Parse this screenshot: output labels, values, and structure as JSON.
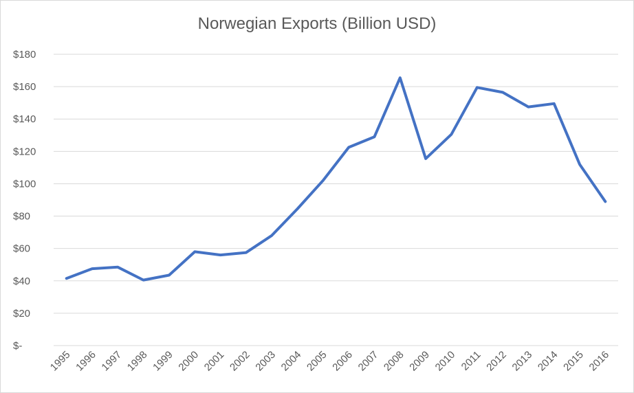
{
  "chart_data": {
    "type": "line",
    "title": "Norwegian Exports (Billion USD)",
    "xlabel": "",
    "ylabel": "",
    "ylim": [
      0,
      180
    ],
    "grid": true,
    "legend": "none",
    "y_ticks": [
      {
        "value": 0,
        "label": "$-"
      },
      {
        "value": 20,
        "label": "$20"
      },
      {
        "value": 40,
        "label": "$40"
      },
      {
        "value": 60,
        "label": "$60"
      },
      {
        "value": 80,
        "label": "$80"
      },
      {
        "value": 100,
        "label": "$100"
      },
      {
        "value": 120,
        "label": "$120"
      },
      {
        "value": 140,
        "label": "$140"
      },
      {
        "value": 160,
        "label": "$160"
      },
      {
        "value": 180,
        "label": "$180"
      }
    ],
    "categories": [
      "1995",
      "1996",
      "1997",
      "1998",
      "1999",
      "2000",
      "2001",
      "2002",
      "2003",
      "2004",
      "2005",
      "2006",
      "2007",
      "2008",
      "2009",
      "2010",
      "2011",
      "2012",
      "2013",
      "2014",
      "2015",
      "2016"
    ],
    "series": [
      {
        "color": "#4472c4",
        "values": [
          41.5,
          47.5,
          48.5,
          40.5,
          43.5,
          58,
          56,
          57.5,
          68,
          84.5,
          102,
          122.5,
          129,
          165.5,
          115.5,
          130.5,
          159.5,
          156.5,
          147.5,
          149.5,
          112,
          89
        ]
      }
    ]
  }
}
